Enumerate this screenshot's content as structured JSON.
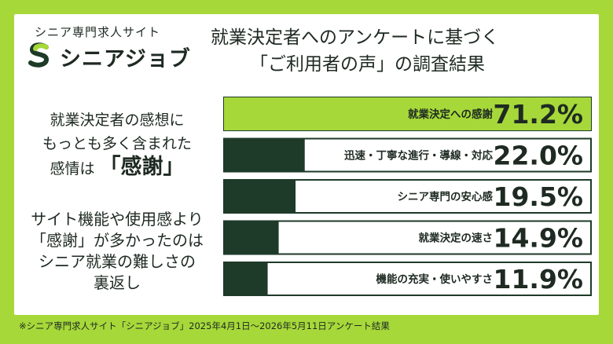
{
  "brand": {
    "subtitle": "シニア専門求人サイト",
    "name": "シニアジョブ",
    "colors": {
      "accent": "#a6d83a",
      "dark": "#1e3a28"
    }
  },
  "title": {
    "line1": "就業決定者へのアンケートに基づく",
    "line2": "「ご利用者の声」の調査結果"
  },
  "left_text": {
    "line1": "就業決定者の感想に",
    "line2": "もっとも多く含まれた",
    "line3_prefix": "感情は",
    "line3_emphasis": "「感謝」",
    "para2_line1": "サイト機能や使用感より",
    "para2_line2": "「感謝」が多かったのは",
    "para2_line3": "シニア就業の難しさの",
    "para2_line4": "裏返し"
  },
  "chart_data": {
    "type": "bar",
    "orientation": "horizontal",
    "categories": [
      "就業決定への感謝",
      "迅速・丁寧な進行・導線・対応",
      "シニア専門の安心感",
      "就業決定の速さ",
      "機能の充実・使いやすさ"
    ],
    "values": [
      71.2,
      22.0,
      19.5,
      14.9,
      11.9
    ],
    "value_labels": [
      "71.2%",
      "22.0%",
      "19.5%",
      "14.9%",
      "11.9%"
    ],
    "xlim": [
      0,
      100
    ],
    "colors": {
      "highlight": "#a6d83a",
      "bar": "#1e3a28",
      "track": "#ffffff"
    }
  },
  "footnote": "※シニア専門求人サイト「シニアジョブ」2025年4月1日～2026年5月11日アンケート結果"
}
